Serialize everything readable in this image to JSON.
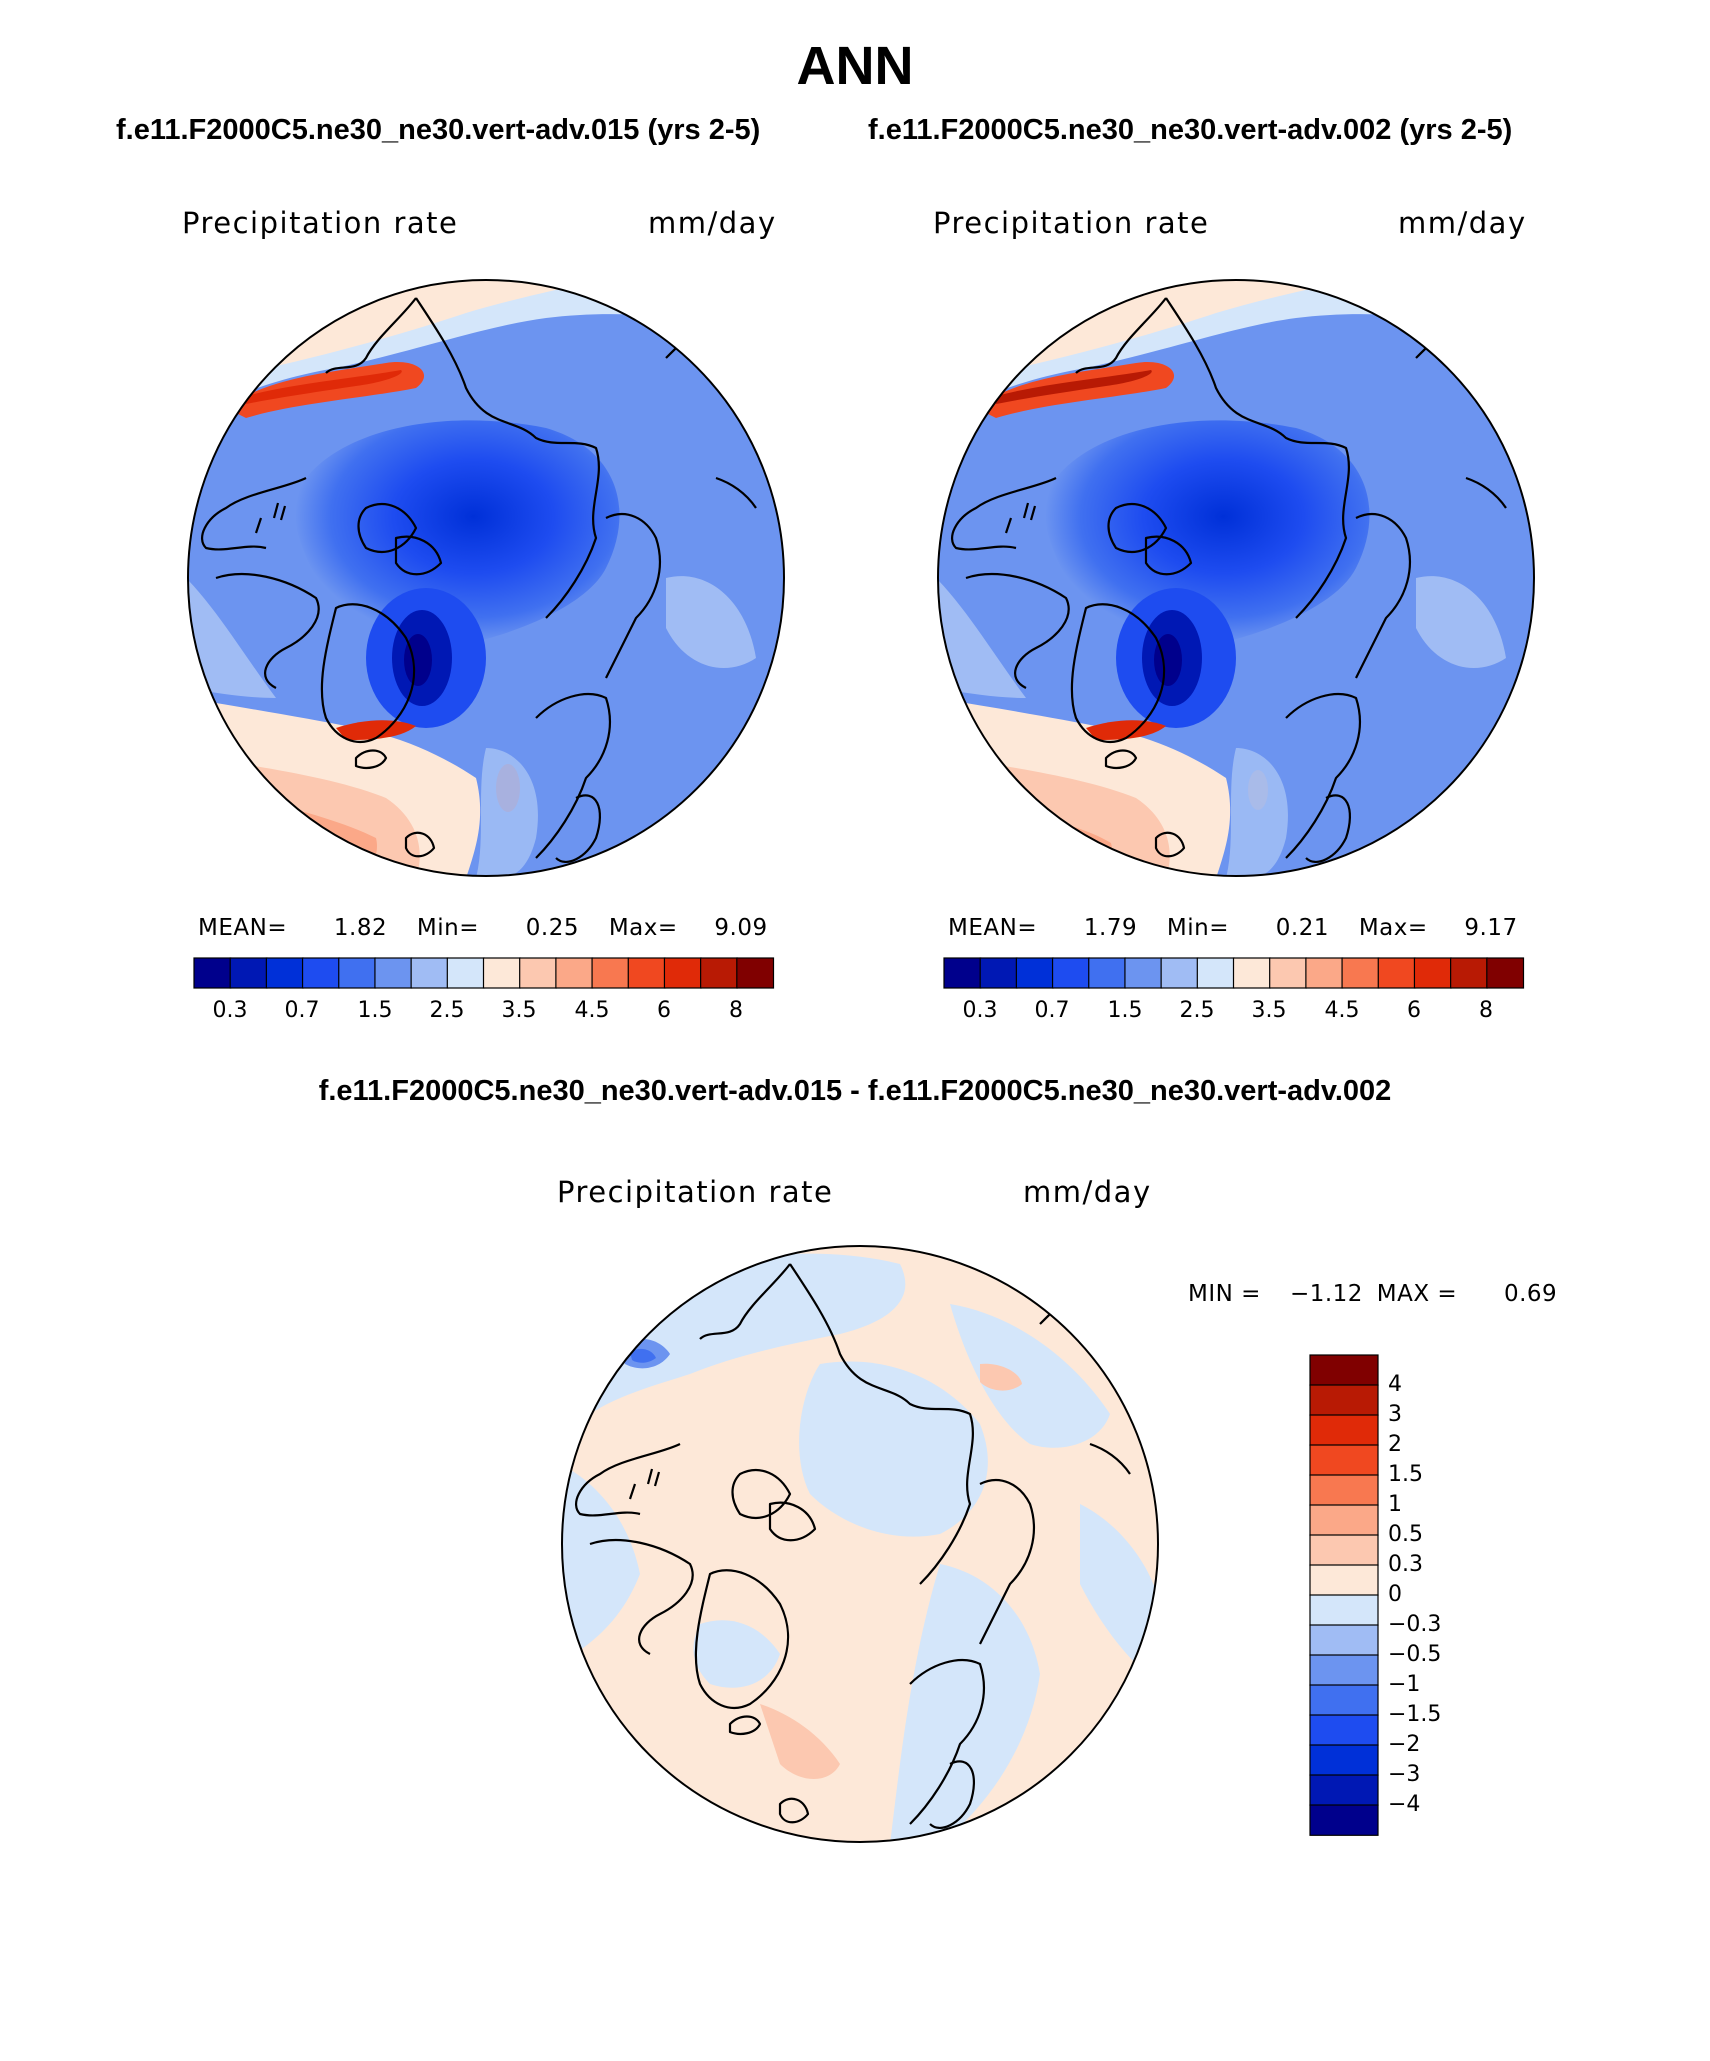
{
  "page": {
    "title": "ANN",
    "case1_title": "f.e11.F2000C5.ne30_ne30.vert-adv.015 (yrs 2-5)",
    "case2_title": "f.e11.F2000C5.ne30_ne30.vert-adv.002 (yrs 2-5)",
    "diff_title": "f.e11.F2000C5.ne30_ne30.vert-adv.015 - f.e11.F2000C5.ne30_ne30.vert-adv.002"
  },
  "panels": [
    {
      "variable": "Precipitation rate",
      "units": "mm/day",
      "stats": {
        "mean_label": "MEAN=",
        "mean": "1.82",
        "min_label": "Min=",
        "min": "0.25",
        "max_label": "Max=",
        "max": "9.09"
      }
    },
    {
      "variable": "Precipitation rate",
      "units": "mm/day",
      "stats": {
        "mean_label": "MEAN=",
        "mean": "1.79",
        "min_label": "Min=",
        "min": "0.21",
        "max_label": "Max=",
        "max": "9.17"
      }
    }
  ],
  "diff_panel": {
    "variable": "Precipitation rate",
    "units": "mm/day",
    "stats": {
      "min_label": "MIN =",
      "min": "−1.12",
      "max_label": "MAX =",
      "max": "0.69"
    }
  },
  "colorbar_abs": {
    "colors": [
      "#00008c",
      "#0018b4",
      "#0030d8",
      "#1e4cf0",
      "#4070f0",
      "#6c94f0",
      "#a0bcf4",
      "#d4e6fa",
      "#fde8d8",
      "#fcc8b0",
      "#fba888",
      "#f87850",
      "#f04820",
      "#e02a08",
      "#b81a04",
      "#800000"
    ],
    "labels": [
      "0.3",
      "0.7",
      "1.5",
      "2.5",
      "3.5",
      "4.5",
      "6",
      "8"
    ]
  },
  "colorbar_diff": {
    "colors": [
      "#00008c",
      "#0018b4",
      "#0030d8",
      "#1e4cf0",
      "#4070f0",
      "#6c94f0",
      "#a0bcf4",
      "#d4e6fa",
      "#fde8d8",
      "#fcc8b0",
      "#fba888",
      "#f87850",
      "#f04820",
      "#e02a08",
      "#b81a04",
      "#800000"
    ],
    "labels": [
      "4",
      "3",
      "2",
      "1.5",
      "1",
      "0.5",
      "0.3",
      "0",
      "−0.3",
      "−0.5",
      "−1",
      "−1.5",
      "−2",
      "−3",
      "−4"
    ]
  }
}
